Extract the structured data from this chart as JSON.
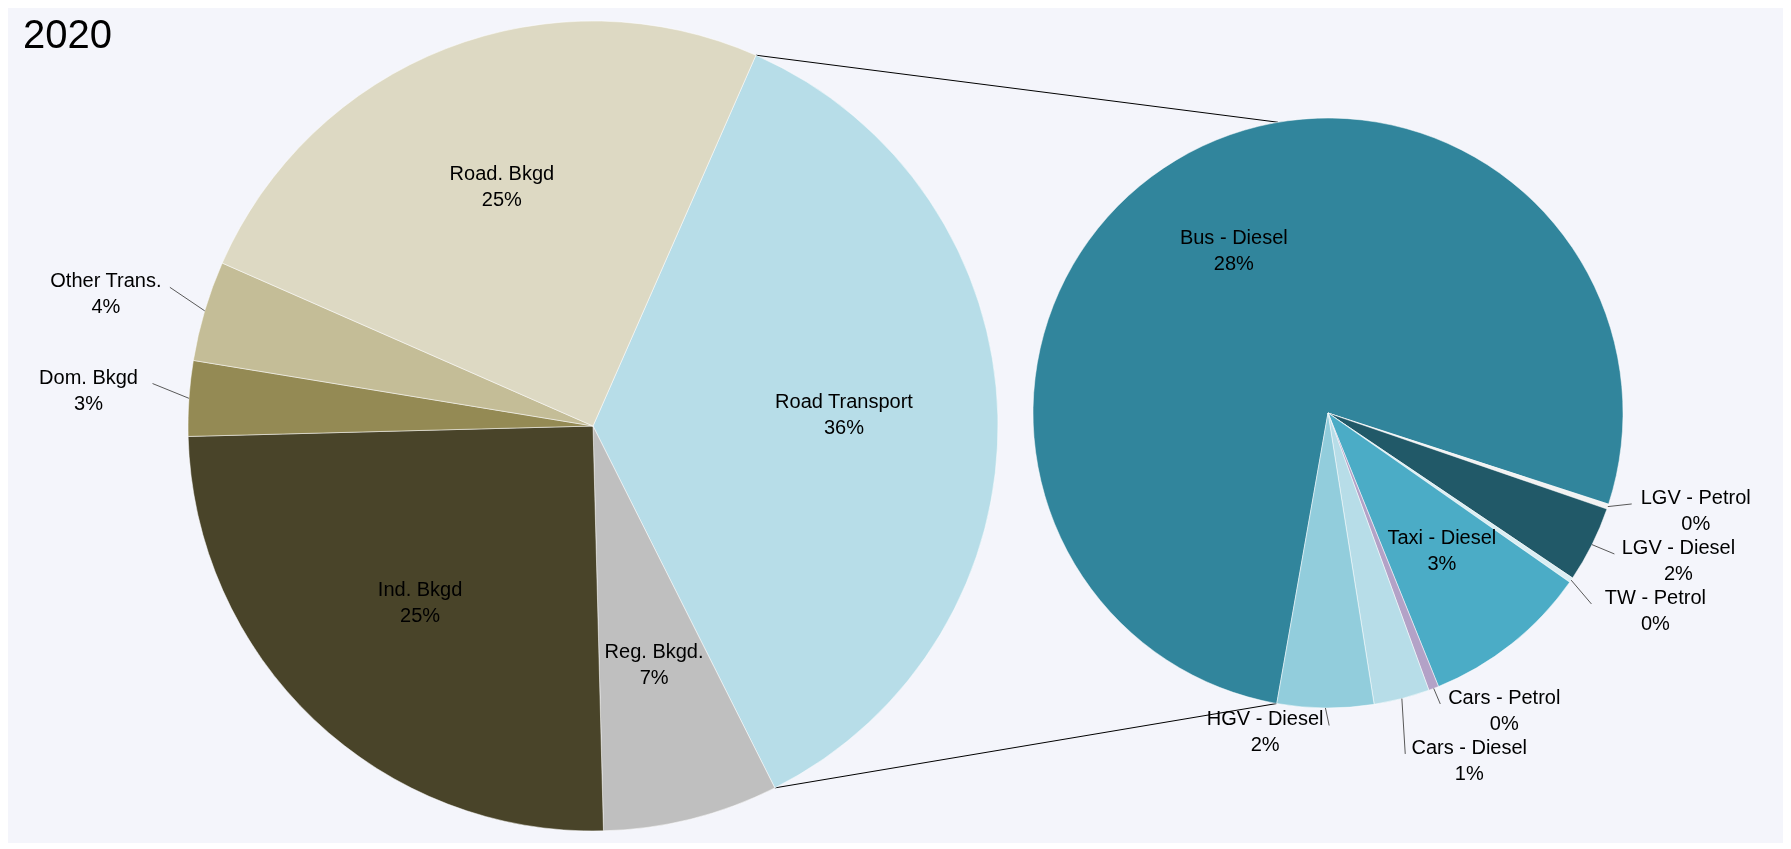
{
  "chart_data": [
    {
      "type": "pie",
      "title": "2020",
      "categories": [
        "Road Transport",
        "Reg. Bkgd.",
        "Ind. Bkgd",
        "Dom. Bkgd",
        "Other Trans.",
        "Road. Bkgd"
      ],
      "values": [
        36,
        7,
        25,
        3,
        4,
        25
      ],
      "colors": [
        "#b7dde8",
        "#bfbfbf",
        "#494429",
        "#948a54",
        "#c4bd97",
        "#ddd9c3"
      ],
      "value_labels": [
        "36%",
        "7%",
        "25%",
        "3%",
        "4%",
        "25%"
      ]
    },
    {
      "type": "pie",
      "categories": [
        "Bus - Diesel",
        "LGV - Petrol",
        "LGV - Diesel",
        "TW - Petrol",
        "Taxi - Diesel",
        "Cars - Petrol",
        "Cars - Diesel",
        "HGV - Diesel"
      ],
      "values": [
        27.8,
        0.1,
        1.5,
        0.1,
        3.3,
        0.2,
        1.1,
        1.9
      ],
      "colors": [
        "#31859c",
        "#f2f2f2",
        "#215968",
        "#dbeef3",
        "#4bacc6",
        "#b3a2c7",
        "#b7dde8",
        "#92cddc"
      ],
      "value_labels": [
        "28%",
        "0%",
        "2%",
        "0%",
        "3%",
        "0%",
        "1%",
        "2%"
      ]
    }
  ]
}
